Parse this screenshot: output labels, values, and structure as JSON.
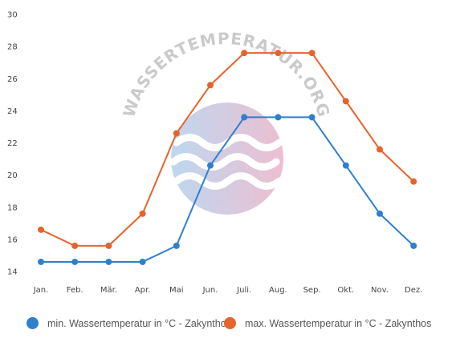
{
  "chart_data": {
    "type": "line",
    "categories": [
      "Jan.",
      "Feb.",
      "Mär.",
      "Apr.",
      "Mai",
      "Jun.",
      "Juli.",
      "Aug.",
      "Sep.",
      "Okt.",
      "Nov.",
      "Dez."
    ],
    "series": [
      {
        "name": "min. Wassertemperatur in °C - Zakynthos",
        "color": "#2f7fcf",
        "values": [
          14.6,
          14.6,
          14.6,
          14.6,
          15.6,
          20.6,
          23.6,
          23.6,
          23.6,
          20.6,
          17.6,
          15.6
        ]
      },
      {
        "name": "max. Wassertemperatur in °C - Zakynthos",
        "color": "#e8622a",
        "values": [
          16.6,
          15.6,
          15.6,
          17.6,
          22.6,
          25.6,
          27.6,
          27.6,
          27.6,
          24.6,
          21.6,
          19.6
        ]
      }
    ],
    "yticks": [
      14,
      16,
      18,
      20,
      22,
      24,
      26,
      28,
      30
    ],
    "ylim": [
      14,
      30
    ],
    "grid": false,
    "legend": "bottom",
    "title": "",
    "xlabel": "",
    "ylabel": ""
  },
  "watermark": {
    "text": "WASSERTEMPERATUR.ORG"
  }
}
